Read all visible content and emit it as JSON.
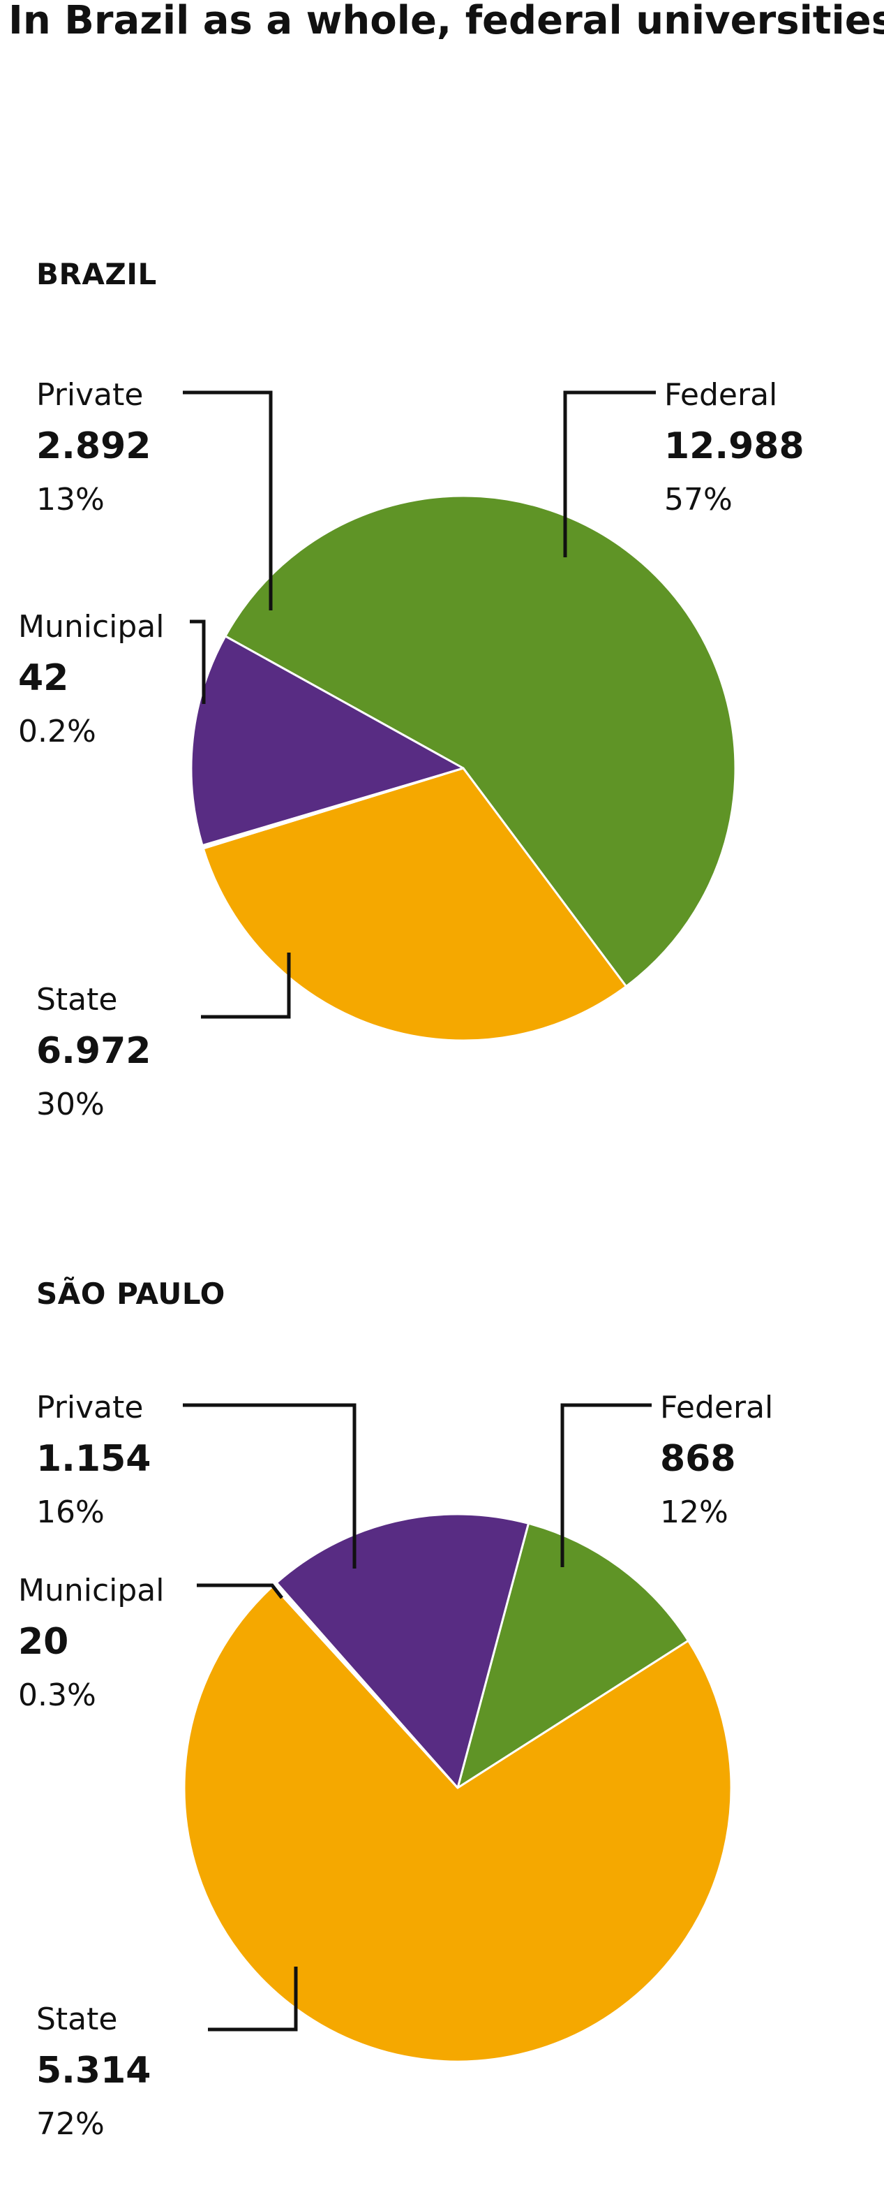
{
  "title": "In Brazil as a whole, federal universities grant the most doctorates; in São Paulo state universities were ahead",
  "title_marker": "◢",
  "colors": {
    "federal": "#5f9426",
    "state": "#f5a800",
    "private": "#582c83",
    "municipal": "#ffffff"
  },
  "chart_data": [
    {
      "type": "pie",
      "title": "BRAZIL",
      "slices": [
        {
          "key": "federal",
          "label": "Federal",
          "count": "12.988",
          "value": 12988,
          "percent": "57%",
          "color": "#5f9426"
        },
        {
          "key": "state",
          "label": "State",
          "count": "6.972",
          "value": 6972,
          "percent": "30%",
          "color": "#f5a800"
        },
        {
          "key": "municipal",
          "label": "Municipal",
          "count": "42",
          "value": 42,
          "percent": "0.2%",
          "color": "#ffffff"
        },
        {
          "key": "private",
          "label": "Private",
          "count": "2.892",
          "value": 2892,
          "percent": "13%",
          "color": "#582c83"
        }
      ]
    },
    {
      "type": "pie",
      "title": "SÃO PAULO",
      "slices": [
        {
          "key": "federal",
          "label": "Federal",
          "count": "868",
          "value": 868,
          "percent": "12%",
          "color": "#5f9426"
        },
        {
          "key": "state",
          "label": "State",
          "count": "5.314",
          "value": 5314,
          "percent": "72%",
          "color": "#f5a800"
        },
        {
          "key": "municipal",
          "label": "Municipal",
          "count": "20",
          "value": 20,
          "percent": "0.3%",
          "color": "#ffffff"
        },
        {
          "key": "private",
          "label": "Private",
          "count": "1.154",
          "value": 1154,
          "percent": "16%",
          "color": "#582c83"
        }
      ]
    }
  ]
}
